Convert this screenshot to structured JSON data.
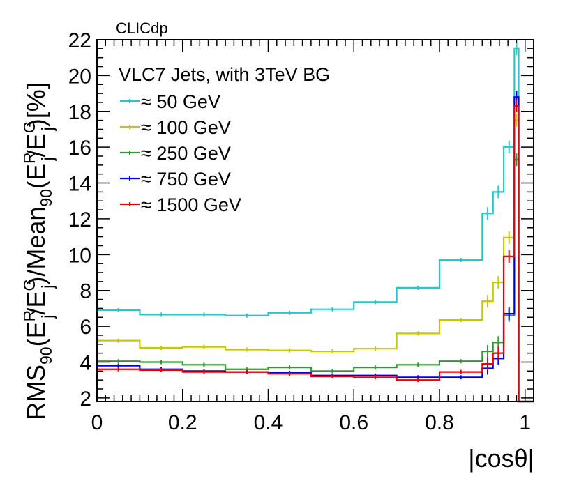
{
  "experiment_label": "CLICdp",
  "chart_data": {
    "type": "line",
    "style": "step histogram with vertical error bars",
    "xlabel": "|cosθ|",
    "ylabel": {
      "base": "RMS",
      "sub1": "90",
      "paren1": "(E",
      "j1_sup": "R",
      "j1_sub": "j",
      "slash1": "/E",
      "j2_sup": "G",
      "j2_sub": "j",
      "mid": ")/Mean",
      "sub2": "90",
      "paren2": "(E",
      "j3_sup": "R",
      "j3_sub": "j",
      "slash2": "/E",
      "j4_sup": "G",
      "j4_sub": "j",
      "tail": ")[%]"
    },
    "xlim": [
      0,
      1.02
    ],
    "ylim": [
      1.8,
      22
    ],
    "x_ticks": [
      "0",
      "0.2",
      "0.4",
      "0.6",
      "0.8",
      "1"
    ],
    "y_ticks": [
      "2",
      "4",
      "6",
      "8",
      "10",
      "12",
      "14",
      "16",
      "18",
      "20",
      "22"
    ],
    "grid": false,
    "legend": {
      "title": "VLC7 Jets, with 3TeV BG",
      "placement": "top-left",
      "entries": [
        "≈ 50 GeV",
        "≈ 100 GeV",
        "≈ 250 GeV",
        "≈ 750 GeV",
        "≈ 1500 GeV"
      ]
    },
    "bin_edges": [
      0,
      0.1,
      0.2,
      0.3,
      0.4,
      0.5,
      0.6,
      0.7,
      0.8,
      0.9,
      0.925,
      0.95,
      0.975,
      0.985,
      1.02
    ],
    "series": [
      {
        "name": "≈ 50 GeV",
        "color": "#22c9c9",
        "values": [
          6.9,
          6.65,
          6.65,
          6.6,
          6.75,
          6.95,
          7.35,
          8.15,
          9.7,
          12.3,
          13.5,
          16.0,
          21.5,
          1.8
        ]
      },
      {
        "name": "≈ 100 GeV",
        "color": "#c8c800",
        "values": [
          5.2,
          4.8,
          4.85,
          4.7,
          4.65,
          4.6,
          4.75,
          5.6,
          6.35,
          7.4,
          8.45,
          10.95,
          17.5,
          1.8
        ]
      },
      {
        "name": "≈ 250 GeV",
        "color": "#2e9a2e",
        "values": [
          4.05,
          4.0,
          3.85,
          3.6,
          3.7,
          3.5,
          3.7,
          3.85,
          4.05,
          4.6,
          5.1,
          6.6,
          15.3,
          1.8
        ]
      },
      {
        "name": "≈ 750 GeV",
        "color": "#0000ee",
        "values": [
          3.8,
          3.6,
          3.5,
          3.45,
          3.4,
          3.25,
          3.25,
          3.15,
          3.15,
          3.65,
          4.2,
          6.7,
          18.8,
          1.8
        ]
      },
      {
        "name": "≈ 1500 GeV",
        "color": "#ee0000",
        "values": [
          3.6,
          3.55,
          3.45,
          3.45,
          3.35,
          3.2,
          3.15,
          3.0,
          3.45,
          3.9,
          4.5,
          9.9,
          18.3,
          1.8
        ]
      }
    ]
  }
}
